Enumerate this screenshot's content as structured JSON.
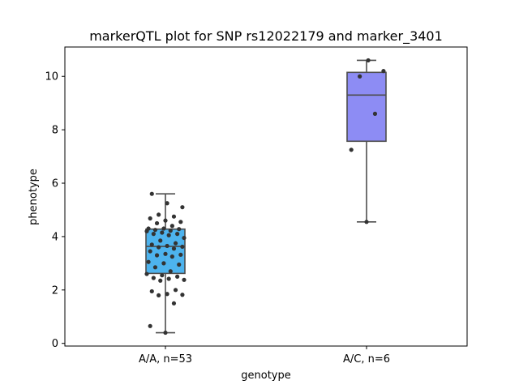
{
  "chart_data": {
    "type": "box",
    "title": "markerQTL plot for SNP rs12022179 and marker_3401",
    "xlabel": "genotype",
    "ylabel": "phenotype",
    "ylim": [
      -0.1,
      11.1
    ],
    "yticks": [
      0,
      2,
      4,
      6,
      8,
      10
    ],
    "grid": false,
    "categories": [
      "A/A, n=53",
      "A/C, n=6"
    ],
    "groups": [
      {
        "label": "A/A, n=53",
        "color": "#4db3ee",
        "box": {
          "whisker_low": 0.4,
          "q1": 2.62,
          "median": 3.63,
          "q3": 4.28,
          "whisker_high": 5.6
        },
        "points": [
          0.4,
          0.65,
          1.5,
          1.8,
          1.82,
          1.85,
          1.95,
          2.0,
          2.35,
          2.38,
          2.42,
          2.45,
          2.5,
          2.55,
          2.6,
          2.7,
          2.85,
          2.95,
          3.0,
          3.05,
          3.25,
          3.3,
          3.32,
          3.35,
          3.45,
          3.55,
          3.6,
          3.62,
          3.65,
          3.7,
          3.75,
          3.85,
          3.95,
          4.05,
          4.1,
          4.1,
          4.15,
          4.2,
          4.22,
          4.25,
          4.28,
          4.3,
          4.3,
          4.4,
          4.5,
          4.55,
          4.6,
          4.68,
          4.75,
          4.82,
          5.1,
          5.25,
          5.6
        ]
      },
      {
        "label": "A/C, n=6",
        "color": "#8d8cf4",
        "box": {
          "whisker_low": 4.55,
          "q1": 7.57,
          "median": 9.3,
          "q3": 10.15,
          "whisker_high": 10.6
        },
        "points": [
          4.55,
          7.25,
          8.6,
          10.0,
          10.2,
          10.6
        ]
      }
    ]
  }
}
